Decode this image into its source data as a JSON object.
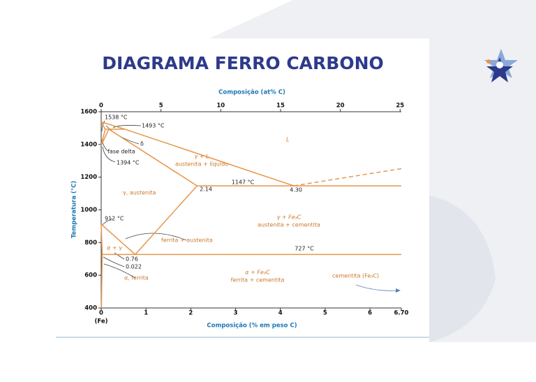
{
  "title": "DIAGRAMA FERRO CARBONO",
  "chart_data": {
    "type": "phase-diagram",
    "x_label": "Composição (% em peso C)",
    "x2_label": "Composição (at% C)",
    "y_label": "Temperatura (°C)",
    "xlim": [
      0,
      6.7
    ],
    "xticks": [
      0,
      1,
      2,
      3,
      4,
      5,
      6,
      {
        "value": 6.7,
        "label": "6.70"
      }
    ],
    "x_origin_note": "(Fe)",
    "x2lim": [
      0,
      25.1
    ],
    "x2ticks": [
      0,
      5,
      10,
      15,
      20,
      25
    ],
    "ylim": [
      400,
      1600
    ],
    "yticks": [
      400,
      600,
      800,
      1000,
      1200,
      1400,
      1600
    ],
    "line_color": "#e8954a",
    "series": [
      {
        "x": [
          0,
          0.53,
          4.3
        ],
        "y": [
          1538,
          1493,
          1147
        ]
      },
      {
        "x": [
          4.3,
          6.7
        ],
        "y": [
          1147,
          1252
        ],
        "dashed": true
      },
      {
        "x": [
          0,
          0.09
        ],
        "y": [
          1538,
          1493
        ]
      },
      {
        "x": [
          0.09,
          0.53
        ],
        "y": [
          1493,
          1493
        ]
      },
      {
        "x": [
          0.17,
          2.14
        ],
        "y": [
          1493,
          1147
        ]
      },
      {
        "x": [
          2.14,
          6.7
        ],
        "y": [
          1147,
          1147
        ]
      },
      {
        "x": [
          0,
          0.09
        ],
        "y": [
          1394,
          1493
        ]
      },
      {
        "x": [
          0,
          0.17
        ],
        "y": [
          1394,
          1493
        ]
      },
      {
        "x": [
          0,
          0.76
        ],
        "y": [
          912,
          727
        ]
      },
      {
        "x": [
          0.76,
          2.14
        ],
        "y": [
          727,
          1147
        ]
      },
      {
        "x": [
          0.022,
          6.7
        ],
        "y": [
          727,
          727
        ]
      },
      {
        "x": [
          0,
          0.022,
          0.005
        ],
        "y": [
          912,
          727,
          400
        ]
      }
    ],
    "annotations": [
      "1538 °C",
      "1493 °C",
      "δ",
      "fase delta",
      "1394 °C",
      "γ + L",
      "austenita + líquido",
      "L",
      "1147 °C",
      "2.14",
      "4.30",
      "γ, austenita",
      "912 °C",
      "γ + Fe₃C",
      "austenita + cementita",
      "ferrita + austenita",
      "α + γ",
      "727 °C",
      "0.76",
      "0.022",
      "α, ferrita",
      "α + Fe₃C",
      "ferrita + cementita",
      "cementita (Fe₃C)"
    ]
  }
}
